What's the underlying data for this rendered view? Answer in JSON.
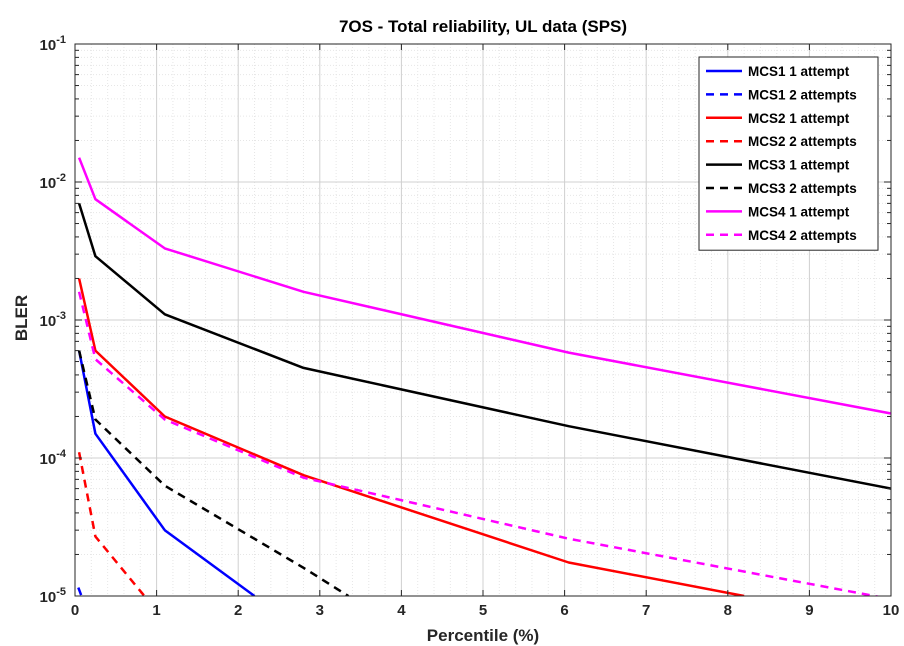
{
  "chart_data": {
    "type": "line",
    "title": "7OS - Total reliability, UL data (SPS)",
    "xlabel": "Percentile (%)",
    "ylabel": "BLER",
    "xlim": [
      0,
      10
    ],
    "ylim": [
      1e-05,
      0.1
    ],
    "yscale": "log",
    "grid": true,
    "legend_position": "top-right",
    "x_ticks": [
      "0",
      "1",
      "2",
      "3",
      "4",
      "5",
      "6",
      "7",
      "8",
      "9",
      "10"
    ],
    "y_ticks": [
      {
        "base": "10",
        "exp": "-5"
      },
      {
        "base": "10",
        "exp": "-4"
      },
      {
        "base": "10",
        "exp": "-3"
      },
      {
        "base": "10",
        "exp": "-2"
      },
      {
        "base": "10",
        "exp": "-1"
      }
    ],
    "series": [
      {
        "name": "MCS1 1 attempt",
        "color": "#0000ff",
        "dash": "solid",
        "points": [
          [
            0.05,
            0.0006
          ],
          [
            0.25,
            0.00015
          ],
          [
            1.1,
            3e-05
          ],
          [
            2.2,
            1e-05
          ]
        ]
      },
      {
        "name": "MCS1 2 attempts",
        "color": "#0000ff",
        "dash": "dashed",
        "points": [
          [
            0.04,
            1.15e-05
          ],
          [
            0.08,
            1e-05
          ]
        ]
      },
      {
        "name": "MCS2 1 attempt",
        "color": "#ff0000",
        "dash": "solid",
        "points": [
          [
            0.05,
            0.002
          ],
          [
            0.25,
            0.0006
          ],
          [
            1.1,
            0.0002
          ],
          [
            2.8,
            7.5e-05
          ],
          [
            6.05,
            1.75e-05
          ],
          [
            8.2,
            1e-05
          ]
        ]
      },
      {
        "name": "MCS2 2 attempts",
        "color": "#ff0000",
        "dash": "dashed",
        "points": [
          [
            0.05,
            0.00011
          ],
          [
            0.25,
            2.7e-05
          ],
          [
            0.85,
            1e-05
          ]
        ]
      },
      {
        "name": "MCS3 1 attempt",
        "color": "#000000",
        "dash": "solid",
        "points": [
          [
            0.05,
            0.007
          ],
          [
            0.25,
            0.0029
          ],
          [
            1.1,
            0.0011
          ],
          [
            2.8,
            0.00045
          ],
          [
            6.05,
            0.00017
          ],
          [
            10,
            6e-05
          ]
        ]
      },
      {
        "name": "MCS3 2 attempts",
        "color": "#000000",
        "dash": "dashed",
        "points": [
          [
            0.05,
            0.0006
          ],
          [
            0.25,
            0.00019
          ],
          [
            1.1,
            6.3e-05
          ],
          [
            2.8,
            1.6e-05
          ],
          [
            3.35,
            1e-05
          ]
        ]
      },
      {
        "name": "MCS4 1 attempt",
        "color": "#ff00ff",
        "dash": "solid",
        "points": [
          [
            0.05,
            0.015
          ],
          [
            0.25,
            0.0075
          ],
          [
            1.1,
            0.0033
          ],
          [
            2.8,
            0.0016
          ],
          [
            6.05,
            0.00058
          ],
          [
            10,
            0.00021
          ]
        ]
      },
      {
        "name": "MCS4 2 attempts",
        "color": "#ff00ff",
        "dash": "dashed",
        "points": [
          [
            0.05,
            0.0016
          ],
          [
            0.25,
            0.00052
          ],
          [
            1.1,
            0.00019
          ],
          [
            2.8,
            7.2e-05
          ],
          [
            6.05,
            2.6e-05
          ],
          [
            10,
            9.5e-06
          ]
        ]
      }
    ]
  }
}
